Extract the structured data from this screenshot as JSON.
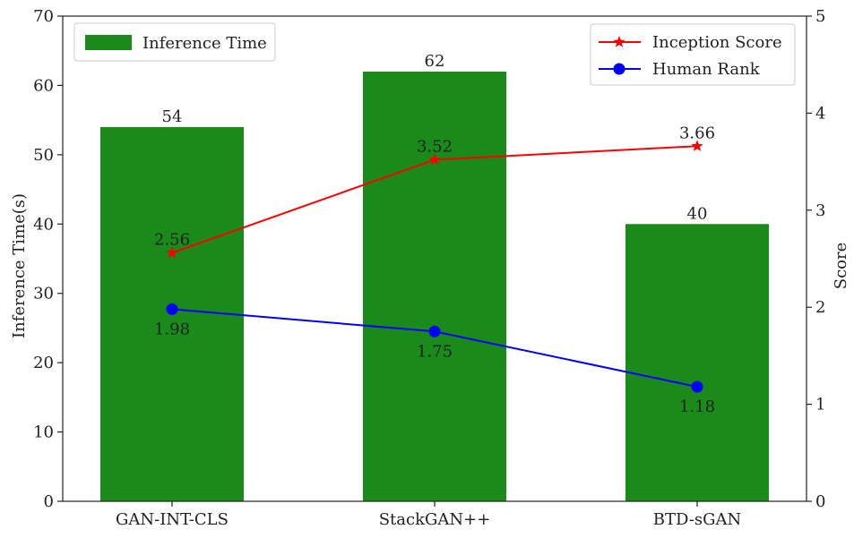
{
  "chart_data": {
    "type": "bar+line",
    "categories": [
      "GAN-INT-CLS",
      "StackGAN++",
      "BTD-sGAN"
    ],
    "bar_series": {
      "name": "Inference Time",
      "values": [
        54,
        62,
        40
      ],
      "color": "#1a8a1a",
      "axis": "left"
    },
    "line_series": [
      {
        "name": "Inception Score",
        "values": [
          2.56,
          3.52,
          3.66
        ],
        "color": "#ff0000",
        "marker": "star",
        "axis": "right",
        "label_position": "above"
      },
      {
        "name": "Human Rank",
        "values": [
          1.98,
          1.75,
          1.18
        ],
        "color": "#0000ff",
        "marker": "circle",
        "axis": "right",
        "label_position": "below"
      }
    ],
    "ylabel_left": "Inference Time(s)",
    "ylabel_right": "Score",
    "ylim_left": [
      0,
      70
    ],
    "ylim_right": [
      0,
      5
    ],
    "yticks_left": [
      0,
      10,
      20,
      30,
      40,
      50,
      60,
      70
    ],
    "yticks_right": [
      0,
      1,
      2,
      3,
      4,
      5
    ],
    "grid": false,
    "legend_bar_placement": "top-left",
    "legend_line_placement": "top-right"
  }
}
